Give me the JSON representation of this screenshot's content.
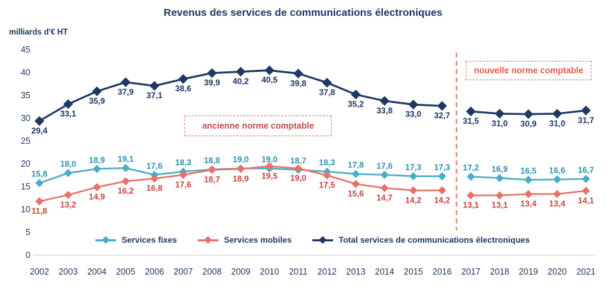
{
  "title": "Revenus des services de communications électroniques",
  "y_axis_label": "milliards d'€ HT",
  "annotations": {
    "old_norm": "ancienne norme comptable",
    "new_norm": "nouvelle norme comptable"
  },
  "legend": [
    {
      "label": "Services fixes",
      "color": "#4BACC6"
    },
    {
      "label": "Services mobiles",
      "color": "#E8716A"
    },
    {
      "label": "Total services de communications électroniques",
      "color": "#1F3864"
    }
  ],
  "chart_data": {
    "type": "line",
    "title": "Revenus des services de communications électroniques",
    "xlabel": "",
    "ylabel": "milliards d'€ HT",
    "x": [
      2002,
      2003,
      2004,
      2005,
      2006,
      2007,
      2008,
      2009,
      2010,
      2011,
      2012,
      2013,
      2014,
      2015,
      2016,
      2017,
      2018,
      2019,
      2020,
      2021
    ],
    "ylim": [
      0,
      45
    ],
    "yticks": [
      0,
      5,
      10,
      15,
      20,
      25,
      30,
      35,
      40,
      45
    ],
    "grid": false,
    "legend_position": "bottom-inside",
    "decimal_separator": ",",
    "separator_after_x": 2016,
    "separator_color": "#F0756B",
    "series": [
      {
        "name": "Services fixes",
        "color": "#4BACC6",
        "label_color": "#2E93AE",
        "label_position": "above",
        "values": [
          15.8,
          18.0,
          18.9,
          19.1,
          17.6,
          18.3,
          18.8,
          19.0,
          19.0,
          18.7,
          18.3,
          17.8,
          17.6,
          17.3,
          17.3,
          17.2,
          16.9,
          16.5,
          16.6,
          16.7
        ]
      },
      {
        "name": "Services mobiles",
        "color": "#E8716A",
        "label_color": "#C9463E",
        "label_position": "below",
        "values": [
          11.8,
          13.2,
          14.9,
          16.2,
          16.8,
          17.6,
          18.7,
          18.9,
          19.5,
          19.0,
          17.5,
          15.6,
          14.7,
          14.2,
          14.2,
          13.1,
          13.1,
          13.4,
          13.4,
          14.1
        ]
      },
      {
        "name": "Total services de communications électroniques",
        "color": "#1F3864",
        "label_color": "#1F3864",
        "label_position": "below",
        "values": [
          29.4,
          33.1,
          35.9,
          37.9,
          37.1,
          38.6,
          39.9,
          40.2,
          40.5,
          39.8,
          37.8,
          35.2,
          33.8,
          33.0,
          32.7,
          31.5,
          31.0,
          30.9,
          31.0,
          31.7
        ]
      }
    ]
  }
}
